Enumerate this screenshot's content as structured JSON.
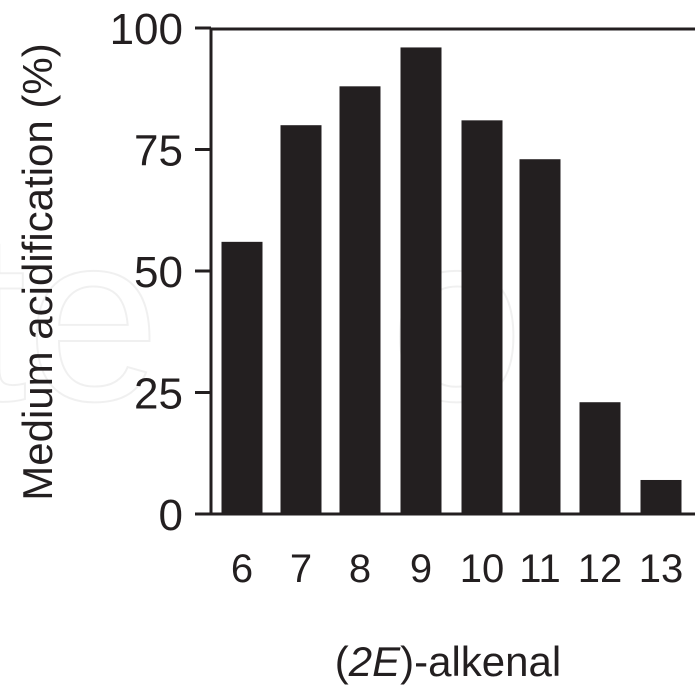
{
  "chart_data": {
    "type": "bar",
    "categories": [
      "6",
      "7",
      "8",
      "9",
      "10",
      "11",
      "12",
      "13"
    ],
    "values": [
      56,
      80,
      88,
      96,
      81,
      73,
      23,
      7
    ],
    "title": "",
    "ylabel": "Medium acidification (%)",
    "xlabel_prefix": "(",
    "xlabel_italic": "2E",
    "xlabel_suffix": ")-alkenal",
    "ylim": [
      0,
      100
    ],
    "yticks": [
      "0",
      "25",
      "50",
      "75",
      "100"
    ],
    "grid": false,
    "legend": "none",
    "bar_color": "#231f20",
    "axis_color": "#231f20"
  }
}
